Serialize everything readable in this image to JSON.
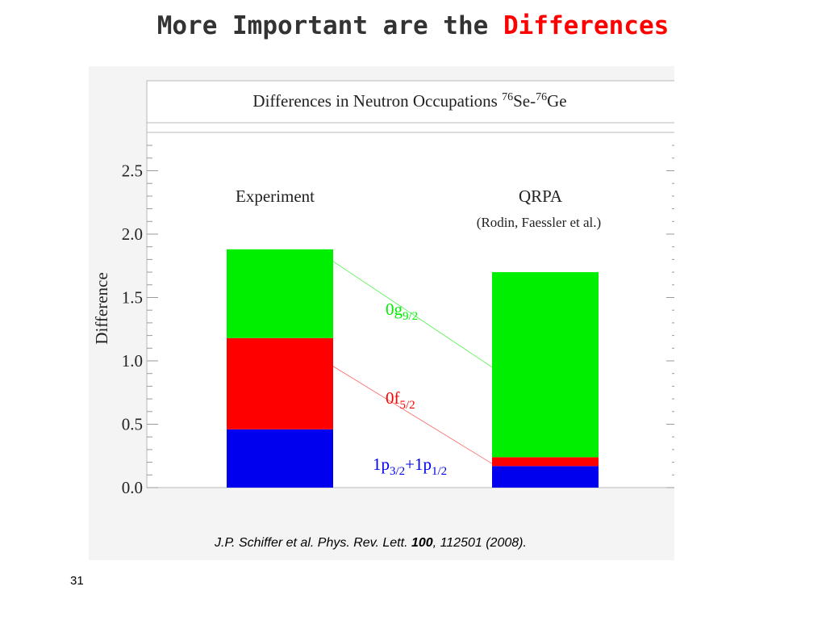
{
  "slide": {
    "title_prefix": "More Important are the ",
    "title_accent": "Differences",
    "accent_color": "#ff0000",
    "citation": {
      "text_before": "J.P. Schiffer et al.  Phys. Rev. Lett. ",
      "volume": "100",
      "text_after": ", 112501 (2008)."
    },
    "page_number": "31"
  },
  "chart_data": {
    "type": "bar",
    "stacked": true,
    "title": "Differences in Neutron Occupations 76Se-76Ge",
    "title_parts": {
      "main": "Differences in Neutron Occupations ",
      "sup1": "76",
      "mid": "Se-",
      "sup2": "76",
      "end": "Ge"
    },
    "ylabel": "Difference",
    "xlabel": "",
    "ylim": [
      0,
      2.5
    ],
    "yticks": [
      "0.0",
      "0.5",
      "1.0",
      "1.5",
      "2.0",
      "2.5"
    ],
    "categories": [
      "Experiment",
      "QRPA"
    ],
    "category_notes": [
      "",
      "(Rodin, Faessler et al.)"
    ],
    "series": [
      {
        "name": "1p3/2+1p1/2",
        "label_main": "1p",
        "label_sub1": "3/2",
        "label_plus": "+1p",
        "label_sub2": "1/2",
        "color": "#0000ee",
        "values": [
          0.46,
          0.17
        ]
      },
      {
        "name": "0f5/2",
        "label_main": "0f",
        "label_sub1": "5/2",
        "color": "#ff0000",
        "values": [
          0.72,
          0.07
        ]
      },
      {
        "name": "0g9/2",
        "label_main": "0g",
        "label_sub1": "9/2",
        "color": "#00ee00",
        "values": [
          0.7,
          1.46
        ]
      }
    ],
    "grid": false,
    "connector_lines": true
  }
}
